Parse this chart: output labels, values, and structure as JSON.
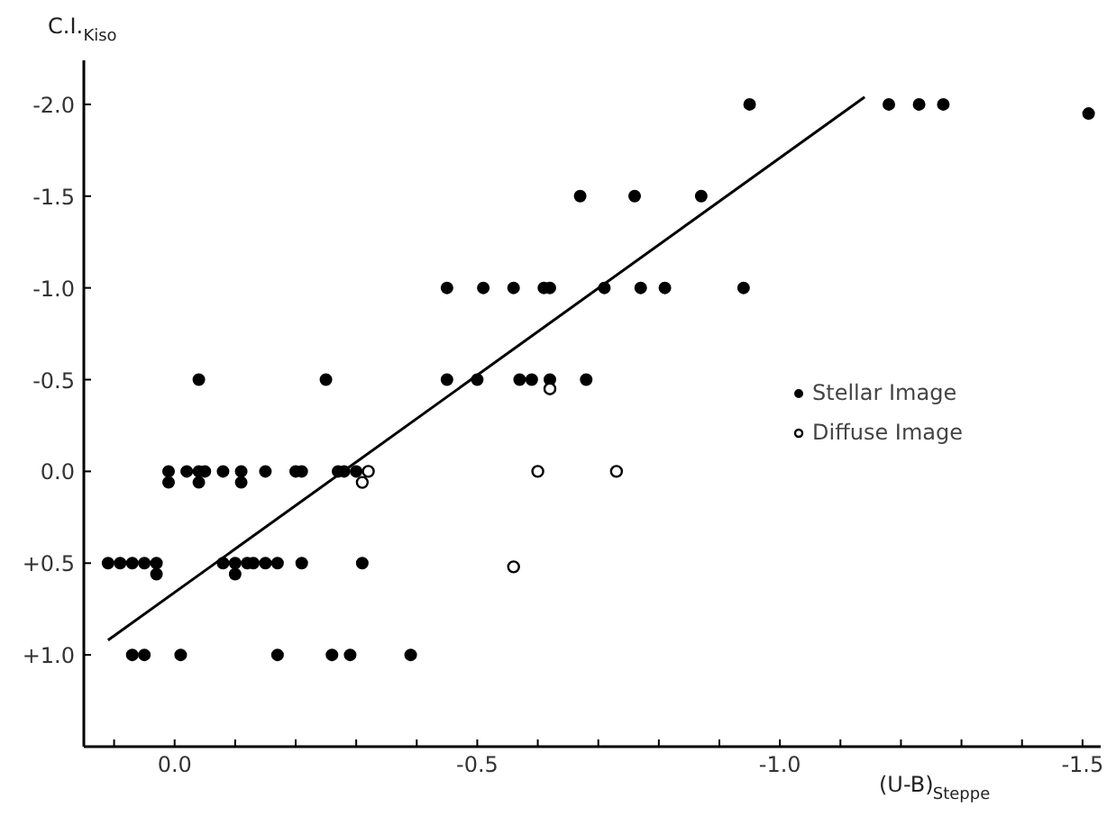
{
  "chart_data": {
    "type": "scatter",
    "xlabel": "(U-B)$_{Steppe}$",
    "ylabel": "C.I.$_{Kiso}$",
    "xlim": [
      0.15,
      -1.53
    ],
    "ylim": [
      1.5,
      -2.24
    ],
    "xticks": [
      {
        "value": 0,
        "label": "0.0"
      },
      {
        "value": -0.5,
        "label": "-0.5"
      },
      {
        "value": -1.0,
        "label": "-1.0"
      },
      {
        "value": -1.5,
        "label": "-1.5"
      },
      {
        "value": 0.1,
        "label": null
      },
      {
        "value": -0.1,
        "label": null
      },
      {
        "value": -0.2,
        "label": null
      },
      {
        "value": -0.3,
        "label": null
      },
      {
        "value": -0.4,
        "label": null
      },
      {
        "value": -0.6,
        "label": null
      },
      {
        "value": -0.7,
        "label": null
      },
      {
        "value": -0.8,
        "label": null
      },
      {
        "value": -0.9,
        "label": null
      },
      {
        "value": -1.1,
        "label": null
      },
      {
        "value": -1.2,
        "label": null
      },
      {
        "value": -1.3,
        "label": null
      },
      {
        "value": -1.4,
        "label": null
      }
    ],
    "yticks": [
      {
        "value": -2.0,
        "label": "-2.0"
      },
      {
        "value": -1.5,
        "label": "-1.5"
      },
      {
        "value": -1.0,
        "label": "-1.0"
      },
      {
        "value": -0.5,
        "label": "-0.5"
      },
      {
        "value": 0,
        "label": "0.0"
      },
      {
        "value": 0.5,
        "label": "+0.5"
      },
      {
        "value": 1.0,
        "label": "+1.0"
      }
    ],
    "grid": false,
    "legend": "right",
    "marker": "circle",
    "series": [
      {
        "name": "Stellar Image",
        "color": "#000000",
        "x": [
          0.01,
          -0.02,
          -0.04,
          -0.05,
          -0.08,
          -0.11,
          -0.15,
          -0.2,
          -0.21,
          -0.27,
          -0.28,
          -0.3,
          0.01,
          -0.04,
          -0.11,
          0.11,
          0.09,
          0.07,
          0.05,
          0.03,
          -0.08,
          -0.1,
          -0.12,
          -0.13,
          -0.15,
          -0.17,
          -0.21,
          -0.31,
          0.03,
          -0.1,
          0.07,
          0.05,
          -0.01,
          -0.17,
          -0.26,
          -0.29,
          -0.39,
          -0.04,
          -0.25,
          -0.45,
          -0.5,
          -0.57,
          -0.59,
          -0.62,
          -0.68,
          -0.45,
          -0.51,
          -0.56,
          -0.61,
          -0.62,
          -0.71,
          -0.77,
          -0.81,
          -0.94,
          -0.67,
          -0.76,
          -0.87,
          -0.95,
          -1.18,
          -1.23,
          -1.27,
          -1.51
        ],
        "values": [
          0,
          0,
          0,
          0,
          0,
          0,
          0,
          0,
          0,
          0,
          0,
          0,
          0.06,
          0.06,
          0.06,
          0.5,
          0.5,
          0.5,
          0.5,
          0.5,
          0.5,
          0.5,
          0.5,
          0.5,
          0.5,
          0.5,
          0.5,
          0.5,
          0.56,
          0.56,
          1.0,
          1.0,
          1.0,
          1.0,
          1.0,
          1.0,
          1.0,
          -0.5,
          -0.5,
          -0.5,
          -0.5,
          -0.5,
          -0.5,
          -0.5,
          -0.5,
          -1.0,
          -1.0,
          -1.0,
          -1.0,
          -1.0,
          -1.0,
          -1.0,
          -1.0,
          -1.0,
          -1.5,
          -1.5,
          -1.5,
          -2.0,
          -2.0,
          -2.0,
          -2.0,
          -1.95
        ]
      },
      {
        "name": "Diffuse Image",
        "color": "#000000",
        "marker": "open_circle",
        "x": [
          -0.32,
          -0.31,
          -0.6,
          -0.73,
          -0.56,
          -0.62
        ],
        "values": [
          0,
          0.06,
          0,
          0,
          0.52,
          -0.45
        ]
      },
      {
        "type": "line",
        "marker": "none",
        "color": "#000000",
        "x": [
          0.11,
          -1.14
        ],
        "values": [
          0.92,
          -2.04
        ]
      }
    ]
  }
}
